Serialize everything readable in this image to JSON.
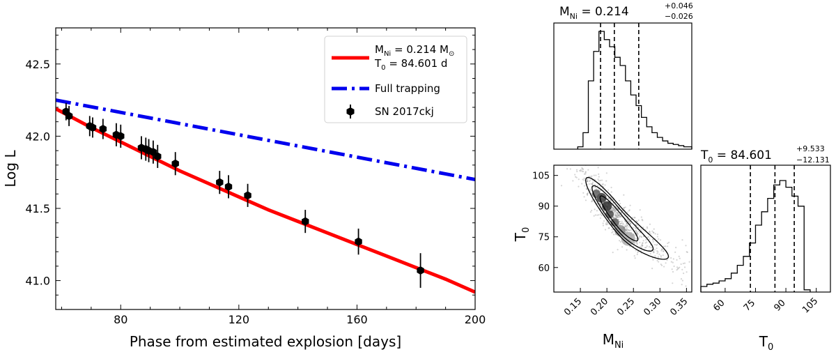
{
  "colors": {
    "fit": "#ff0000",
    "trap": "#0000ee",
    "obs": "#000000"
  },
  "main": {
    "ylabel": "Log L",
    "xlabel": "Phase from estimated explosion [days]",
    "xlim": [
      58,
      200
    ],
    "ylim": [
      40.8,
      42.75
    ],
    "xticks": [
      "80",
      "120",
      "160",
      "200"
    ],
    "yticks": [
      "41.0",
      "41.5",
      "42.0",
      "42.5"
    ],
    "legend": {
      "fit_line1": "M",
      "fit_line1_sub": "Ni",
      "fit_line1_rest": " = 0.214 M",
      "fit_line1_sun": "⊙",
      "fit_line2": "T",
      "fit_line2_sub": "0",
      "fit_line2_rest": " = 84.601 d",
      "trap": "Full trapping",
      "obs": "SN 2017ckj"
    }
  },
  "corner": {
    "title_mni": "M",
    "title_mni_sub": "Ni",
    "title_mni_val": " = 0.214",
    "title_mni_plus": "+0.046",
    "title_mni_minus": "−0.026",
    "title_t0": "T",
    "title_t0_sub": "0",
    "title_t0_val": " = 84.601",
    "title_t0_plus": "+9.533",
    "title_t0_minus": "−12.131",
    "xlabel_mni": "M",
    "xlabel_mni_sub": "Ni",
    "xlabel_t0": "T",
    "xlabel_t0_sub": "0",
    "ylabel_t0": "T",
    "ylabel_t0_sub": "0",
    "mni_ticks": [
      "0.15",
      "0.20",
      "0.25",
      "0.30",
      "0.35"
    ],
    "t0_ticks": [
      "60",
      "75",
      "90",
      "105"
    ]
  },
  "chart_data": [
    {
      "type": "line",
      "title": "",
      "xlabel": "Phase from estimated explosion [days]",
      "ylabel": "Log L",
      "xlim": [
        58,
        200
      ],
      "ylim": [
        40.8,
        42.75
      ],
      "series": [
        {
          "name": "M_Ni = 0.214 M_sun, T0 = 84.601 d",
          "style": "solid",
          "x": [
            58,
            70,
            80,
            90,
            100,
            110,
            120,
            130,
            140,
            150,
            160,
            170,
            180,
            190,
            200
          ],
          "y": [
            42.19,
            42.06,
            41.96,
            41.86,
            41.76,
            41.67,
            41.58,
            41.49,
            41.41,
            41.33,
            41.25,
            41.17,
            41.09,
            41.01,
            40.92
          ]
        },
        {
          "name": "Full trapping",
          "style": "dashdot",
          "x": [
            58,
            200
          ],
          "y": [
            42.25,
            41.7
          ]
        }
      ],
      "points": {
        "name": "SN 2017ckj",
        "x": [
          61.5,
          62.5,
          69.5,
          70.5,
          74,
          78.5,
          80,
          87,
          88.5,
          89.5,
          91,
          92.5,
          98.5,
          113.5,
          116.5,
          123,
          142.5,
          160.5,
          181.5
        ],
        "y": [
          42.17,
          42.14,
          42.07,
          42.06,
          42.05,
          42.01,
          42.0,
          41.92,
          41.91,
          41.9,
          41.89,
          41.86,
          41.81,
          41.68,
          41.65,
          41.59,
          41.41,
          41.27,
          41.07
        ],
        "err": [
          0.06,
          0.07,
          0.07,
          0.07,
          0.07,
          0.08,
          0.08,
          0.08,
          0.08,
          0.08,
          0.08,
          0.08,
          0.08,
          0.08,
          0.08,
          0.08,
          0.08,
          0.09,
          0.12
        ]
      }
    },
    {
      "type": "histogram",
      "name": "M_Ni posterior",
      "xlim": [
        0.1,
        0.36
      ],
      "bin_edges": [
        0.145,
        0.155,
        0.165,
        0.175,
        0.185,
        0.195,
        0.205,
        0.215,
        0.225,
        0.235,
        0.245,
        0.255,
        0.265,
        0.275,
        0.285,
        0.295,
        0.305,
        0.315,
        0.325,
        0.335,
        0.345,
        0.36
      ],
      "counts": [
        0.02,
        0.14,
        0.58,
        0.83,
        1.0,
        0.93,
        0.87,
        0.78,
        0.71,
        0.58,
        0.46,
        0.37,
        0.27,
        0.19,
        0.14,
        0.1,
        0.07,
        0.05,
        0.04,
        0.03,
        0.02
      ],
      "quantiles": [
        0.188,
        0.214,
        0.26
      ]
    },
    {
      "type": "histogram",
      "name": "T0 posterior",
      "xlim": [
        48,
        112
      ],
      "bin_edges": [
        48,
        51,
        54,
        57,
        60,
        63,
        66,
        69,
        72,
        75,
        78,
        81,
        84,
        87,
        90,
        93,
        96,
        99,
        102
      ],
      "counts": [
        0.05,
        0.07,
        0.08,
        0.1,
        0.12,
        0.17,
        0.24,
        0.32,
        0.44,
        0.6,
        0.72,
        0.84,
        0.96,
        1.0,
        0.94,
        0.86,
        0.77,
        0.02
      ],
      "quantiles": [
        72.47,
        84.601,
        94.134
      ]
    },
    {
      "type": "contour",
      "name": "M_Ni vs T0 joint posterior",
      "xlim": [
        0.1,
        0.36
      ],
      "ylim": [
        48,
        110
      ],
      "mean": [
        0.22,
        84
      ],
      "sd": [
        0.03,
        10
      ],
      "corr": -0.93
    }
  ]
}
